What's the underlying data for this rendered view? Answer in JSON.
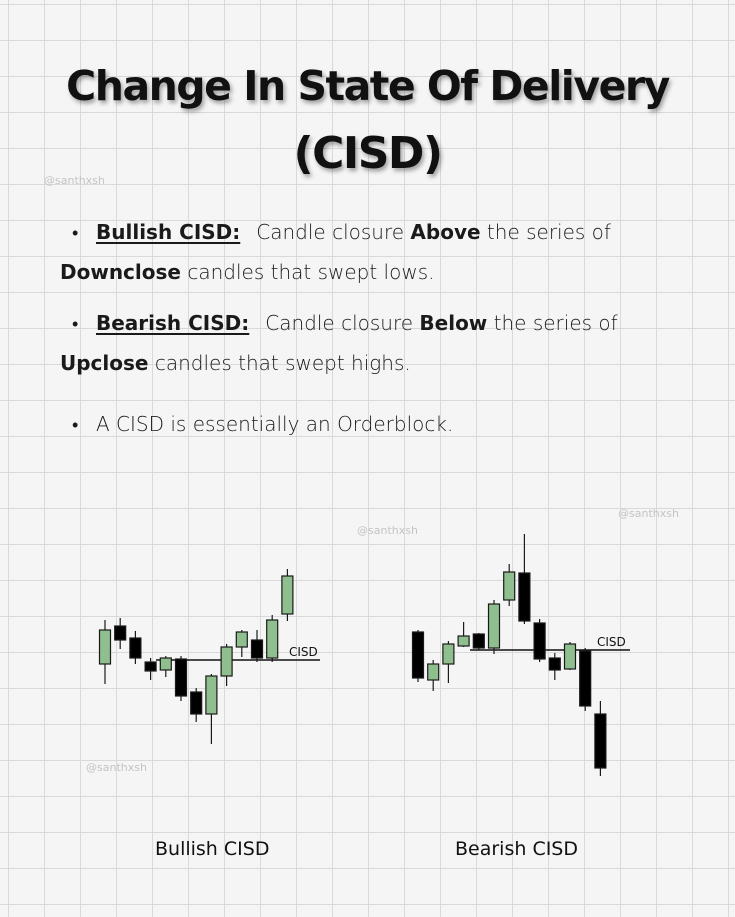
{
  "title": {
    "line1": "Change In State Of Delivery",
    "line2": "(CISD)"
  },
  "watermark": "@santhxsh",
  "bullets": [
    {
      "term": "Bullish CISD:",
      "text1": "Candle closure ",
      "bold1": "Above",
      "text2": " the series of",
      "bold2": "Downclose",
      "text3": " candles that swept lows."
    },
    {
      "term": "Bearish CISD:",
      "text1": "Candle closure ",
      "bold1": "Below",
      "text2": " the series of",
      "bold2": "Upclose",
      "text3": " candles that swept highs."
    },
    {
      "text": "A CISD is essentially an Orderblock."
    }
  ],
  "colors": {
    "bull": "#8fbf8f",
    "bear": "#000000",
    "outline": "#1a1a1a"
  },
  "chart_data": [
    {
      "type": "candlestick",
      "caption": "Bullish CISD",
      "level_label": "CISD",
      "level": 54,
      "candles": [
        {
          "open": 50,
          "close": 84,
          "high": 94,
          "low": 30,
          "dir": "bull"
        },
        {
          "open": 74,
          "close": 88,
          "high": 96,
          "low": 65,
          "dir": "bear"
        },
        {
          "open": 56,
          "close": 76,
          "high": 83,
          "low": 50,
          "dir": "bear"
        },
        {
          "open": 43,
          "close": 52,
          "high": 56,
          "low": 34,
          "dir": "bear"
        },
        {
          "open": 44,
          "close": 56,
          "high": 58,
          "low": 37,
          "dir": "bull"
        },
        {
          "open": 18,
          "close": 55,
          "high": 58,
          "low": 13,
          "dir": "bear"
        },
        {
          "open": 0,
          "close": 22,
          "high": 26,
          "low": -8,
          "dir": "bear"
        },
        {
          "open": 0,
          "close": 38,
          "high": 40,
          "low": -30,
          "dir": "bull"
        },
        {
          "open": 38,
          "close": 67,
          "high": 70,
          "low": 28,
          "dir": "bull"
        },
        {
          "open": 67,
          "close": 82,
          "high": 84,
          "low": 57,
          "dir": "bull"
        },
        {
          "open": 56,
          "close": 74,
          "high": 84,
          "low": 52,
          "dir": "bear"
        },
        {
          "open": 56,
          "close": 94,
          "high": 99,
          "low": 52,
          "dir": "bull"
        },
        {
          "open": 100,
          "close": 138,
          "high": 145,
          "low": 93,
          "dir": "bull"
        }
      ]
    },
    {
      "type": "candlestick",
      "caption": "Bearish CISD",
      "level_label": "CISD",
      "level": 96,
      "candles": [
        {
          "open": 68,
          "close": 114,
          "high": 116,
          "low": 64,
          "dir": "bear"
        },
        {
          "open": 66,
          "close": 82,
          "high": 86,
          "low": 55,
          "dir": "bull"
        },
        {
          "open": 82,
          "close": 102,
          "high": 105,
          "low": 63,
          "dir": "bull"
        },
        {
          "open": 100,
          "close": 110,
          "high": 124,
          "low": 99,
          "dir": "bull"
        },
        {
          "open": 98,
          "close": 112,
          "high": 113,
          "low": 96,
          "dir": "bear"
        },
        {
          "open": 98,
          "close": 142,
          "high": 146,
          "low": 92,
          "dir": "bull"
        },
        {
          "open": 146,
          "close": 174,
          "high": 182,
          "low": 140,
          "dir": "bull"
        },
        {
          "open": 125,
          "close": 173,
          "high": 212,
          "low": 122,
          "dir": "bear"
        },
        {
          "open": 87,
          "close": 123,
          "high": 127,
          "low": 84,
          "dir": "bear"
        },
        {
          "open": 76,
          "close": 88,
          "high": 93,
          "low": 66,
          "dir": "bear"
        },
        {
          "open": 77,
          "close": 102,
          "high": 104,
          "low": 76,
          "dir": "bull"
        },
        {
          "open": 40,
          "close": 95,
          "high": 98,
          "low": 35,
          "dir": "bear"
        },
        {
          "open": -22,
          "close": 32,
          "high": 45,
          "low": -30,
          "dir": "bear"
        }
      ]
    }
  ]
}
